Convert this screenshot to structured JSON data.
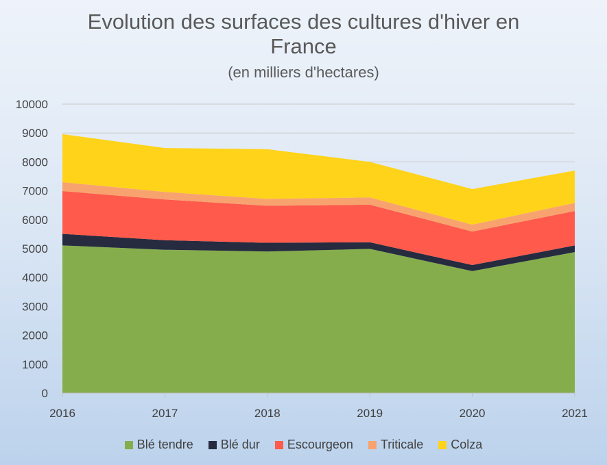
{
  "chart_data": {
    "type": "area",
    "stacked": true,
    "title_line1": "Evolution des surfaces des cultures d'hiver en",
    "title_line2": "France",
    "subtitle": "(en milliers d'hectares)",
    "xlabel": "",
    "ylabel": "",
    "x": [
      "2016",
      "2017",
      "2018",
      "2019",
      "2020",
      "2021"
    ],
    "ylim": [
      0,
      10000
    ],
    "yticks": [
      "0",
      "1000",
      "2000",
      "3000",
      "4000",
      "5000",
      "6000",
      "7000",
      "8000",
      "9000",
      "10000"
    ],
    "grid": true,
    "legend_position": "bottom",
    "series": [
      {
        "name": "Blé tendre",
        "color": "#86ad4c",
        "values": [
          5110,
          4960,
          4900,
          4990,
          4220,
          4880
        ]
      },
      {
        "name": "Blé dur",
        "color": "#262b40",
        "values": [
          400,
          330,
          300,
          230,
          210,
          230
        ]
      },
      {
        "name": "Escourgeon",
        "color": "#ff5a4b",
        "values": [
          1480,
          1410,
          1280,
          1300,
          1160,
          1190
        ]
      },
      {
        "name": "Triticale",
        "color": "#f8a36f",
        "values": [
          310,
          260,
          240,
          250,
          240,
          280
        ]
      },
      {
        "name": "Colza",
        "color": "#ffd31a",
        "values": [
          1660,
          1520,
          1720,
          1230,
          1230,
          1120
        ]
      }
    ]
  }
}
